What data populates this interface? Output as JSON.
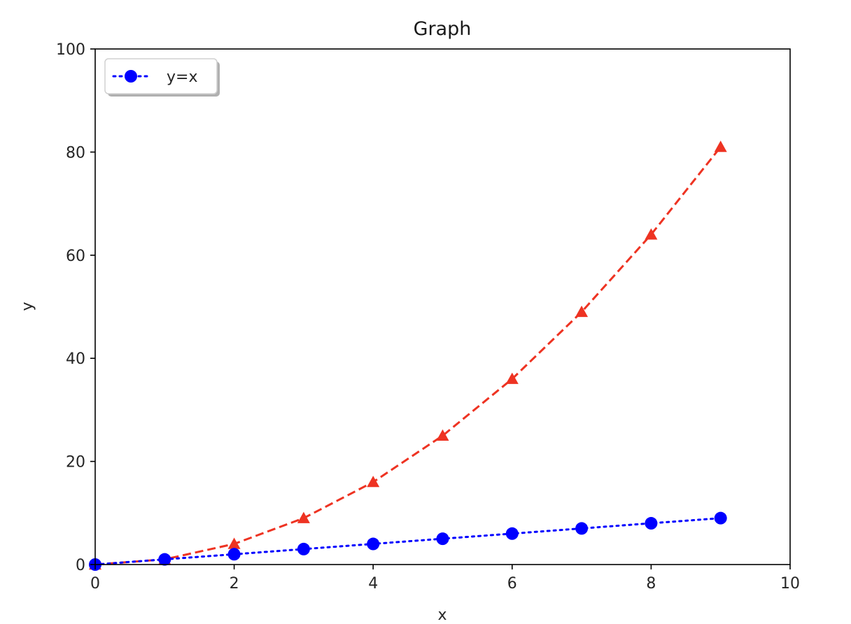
{
  "chart_data": {
    "type": "line",
    "title": "Graph",
    "xlabel": "x",
    "ylabel": "y",
    "xlim": [
      0,
      10
    ],
    "ylim": [
      0,
      100
    ],
    "xticks": [
      "0",
      "2",
      "4",
      "6",
      "8",
      "10"
    ],
    "yticks": [
      "0",
      "20",
      "40",
      "60",
      "80",
      "100"
    ],
    "x": [
      0,
      1,
      2,
      3,
      4,
      5,
      6,
      7,
      8,
      9
    ],
    "grid": false,
    "legend_position": "top-left",
    "series": [
      {
        "name": "y=x",
        "values": [
          0,
          1,
          2,
          3,
          4,
          5,
          6,
          7,
          8,
          9
        ],
        "color": "#0000ff",
        "line_style": "dotted",
        "marker": "circle"
      },
      {
        "values": [
          0,
          1,
          4,
          9,
          16,
          25,
          36,
          49,
          64,
          81
        ],
        "color": "#ee3322",
        "line_style": "dashed",
        "marker": "triangle"
      }
    ]
  }
}
